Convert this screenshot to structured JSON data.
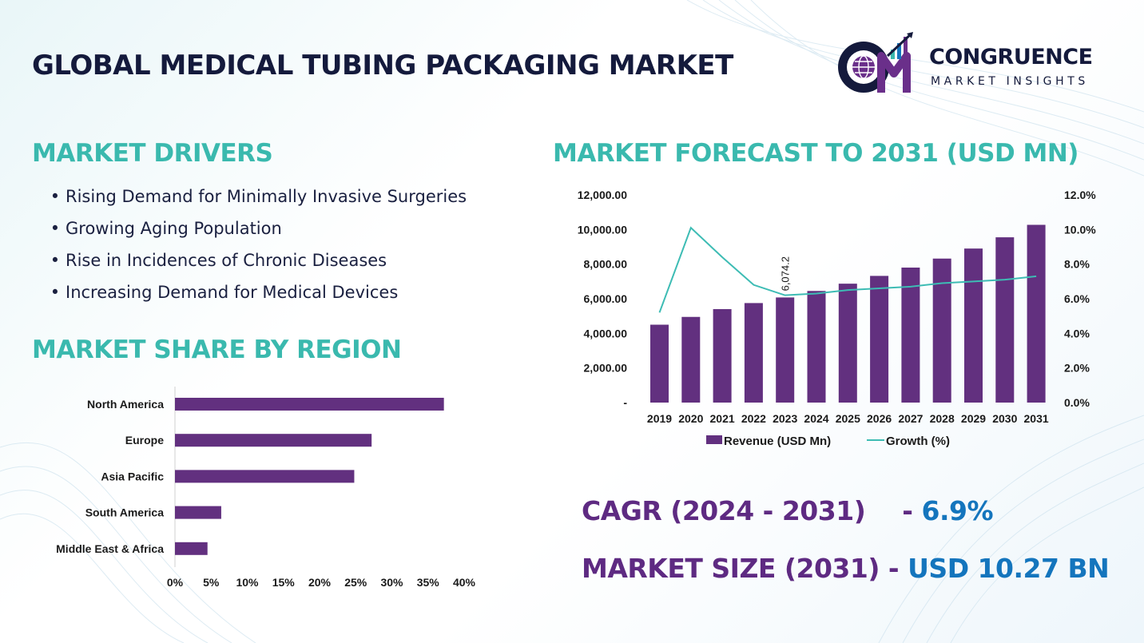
{
  "header": {
    "title": "GLOBAL MEDICAL TUBING PACKAGING MARKET"
  },
  "logo": {
    "name": "CONGRUENCE",
    "tagline": "MARKET INSIGHTS",
    "mark_icon": "cm-globe-bars-logo"
  },
  "drivers": {
    "heading": "MARKET DRIVERS",
    "items": [
      "Rising Demand for Minimally Invasive Surgeries",
      "Growing Aging Population",
      "Rise in Incidences of Chronic Diseases",
      "Increasing Demand for Medical Devices"
    ]
  },
  "region_section": {
    "heading": "MARKET SHARE BY REGION"
  },
  "forecast_section": {
    "heading": "MARKET FORECAST TO 2031 (USD MN)"
  },
  "stats": {
    "cagr": {
      "label": "CAGR (2024 - 2031)",
      "separator": "-",
      "value": "6.9%"
    },
    "size": {
      "label": "MARKET SIZE (2031)",
      "separator": "-",
      "value": "USD 10.27 BN"
    }
  },
  "colors": {
    "bar": "#62307f",
    "line": "#3dbcb4",
    "heading": "#3ab9ae",
    "title": "#141a3c",
    "stat_label": "#5e2a82",
    "stat_value": "#1475bd"
  },
  "chart_data": [
    {
      "type": "bar",
      "orientation": "horizontal",
      "categories": [
        "North America",
        "Europe",
        "Asia Pacific",
        "South America",
        "Middle East & Africa"
      ],
      "values": [
        37.2,
        27.2,
        24.8,
        6.4,
        4.5
      ],
      "unit": "%",
      "xlim": [
        0,
        40
      ],
      "x_ticks": [
        "0%",
        "5%",
        "10%",
        "15%",
        "20%",
        "25%",
        "30%",
        "35%",
        "40%"
      ],
      "grid": false
    },
    {
      "type": "bar+line",
      "categories": [
        "2019",
        "2020",
        "2021",
        "2022",
        "2023",
        "2024",
        "2025",
        "2026",
        "2027",
        "2028",
        "2029",
        "2030",
        "2031"
      ],
      "series": [
        {
          "name": "Revenue (USD Mn)",
          "type": "bar",
          "axis": "left",
          "values": [
            4500,
            4950,
            5400,
            5750,
            6074.2,
            6450,
            6870,
            7320,
            7800,
            8320,
            8900,
            9550,
            10270
          ]
        },
        {
          "name": "Growth (%)",
          "type": "line",
          "axis": "right",
          "values": [
            5.2,
            10.1,
            8.4,
            6.8,
            6.2,
            6.3,
            6.5,
            6.6,
            6.7,
            6.9,
            7.0,
            7.1,
            7.3
          ]
        }
      ],
      "data_labels": [
        {
          "category": "2023",
          "text": "6,074.2"
        }
      ],
      "y_left_ticks": [
        "-",
        "2,000.00",
        "4,000.00",
        "6,000.00",
        "8,000.00",
        "10,000.00",
        "12,000.00"
      ],
      "ylim_left": [
        0,
        12000
      ],
      "y_right_ticks": [
        "0.0%",
        "2.0%",
        "4.0%",
        "6.0%",
        "8.0%",
        "10.0%",
        "12.0%"
      ],
      "ylim_right": [
        0,
        12
      ],
      "legend_position": "bottom",
      "grid": false
    }
  ]
}
